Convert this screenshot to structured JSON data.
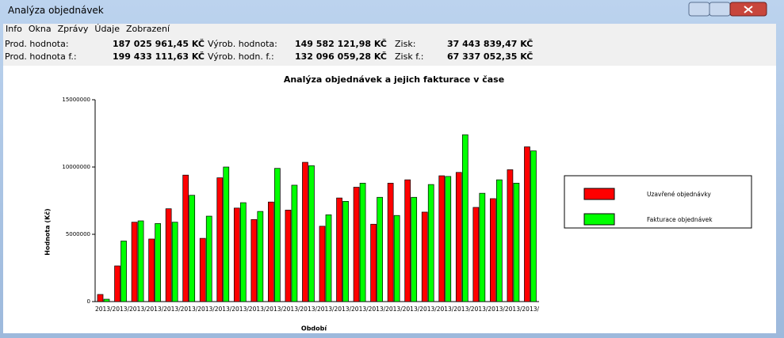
{
  "window": {
    "title": "Analýza objednávek"
  },
  "menu": [
    "Info",
    "Okna",
    "Zprávy",
    "Údaje",
    "Zobrazení"
  ],
  "stats": [
    {
      "label": "Prod. hodnota:",
      "value": "187 025 961,45 KČ"
    },
    {
      "label": "Výrob. hodnota:",
      "value": "149 582 121,98 KČ"
    },
    {
      "label": "Zisk:",
      "value": "37 443 839,47 KČ"
    },
    {
      "label": "Prod. hodnota f.:",
      "value": "199 433 111,63 KČ"
    },
    {
      "label": "Výrob. hodn. f.:",
      "value": "132 096 059,28 KČ"
    },
    {
      "label": "Zisk f.:",
      "value": "67 337 052,35 KČ"
    }
  ],
  "chart_data": {
    "type": "bar",
    "title": "Analýza objednávek a jejich fakturace v čase",
    "xlabel": "Období",
    "ylabel": "Hodnota (Kč)",
    "categories": [
      "2013/",
      "2013/",
      "2013/",
      "2013/",
      "2013/",
      "2013/",
      "2013/",
      "2013/",
      "2013/",
      "2013/",
      "2013/",
      "2013/",
      "2013/",
      "2013/",
      "2013/",
      "2013/",
      "2013/",
      "2013/",
      "2013/",
      "2013/",
      "2013/",
      "2013/",
      "2013/",
      "2013/",
      "2013/",
      "2013/"
    ],
    "series": [
      {
        "name": "Uzavřené objednávky",
        "color": "#ff0000",
        "values": [
          530000,
          2650000,
          5900000,
          4650000,
          6900000,
          9400000,
          4700000,
          9200000,
          6950000,
          6100000,
          7400000,
          6800000,
          10350000,
          5600000,
          7700000,
          8500000,
          5750000,
          8800000,
          9050000,
          6650000,
          9350000,
          9600000,
          7000000,
          7650000,
          9800000,
          11500000
        ]
      },
      {
        "name": "Fakturace objednávek",
        "color": "#00ff00",
        "values": [
          176000,
          4500000,
          6000000,
          5800000,
          5900000,
          7900000,
          6350000,
          10000000,
          7350000,
          6700000,
          9900000,
          8650000,
          10100000,
          6450000,
          7450000,
          8800000,
          7750000,
          6400000,
          7750000,
          8700000,
          9300000,
          12400000,
          8050000,
          9050000,
          8800000,
          11200000
        ]
      }
    ],
    "ylim": [
      0,
      15000000
    ],
    "yticks": [
      0,
      5000000,
      10000000,
      15000000
    ]
  }
}
